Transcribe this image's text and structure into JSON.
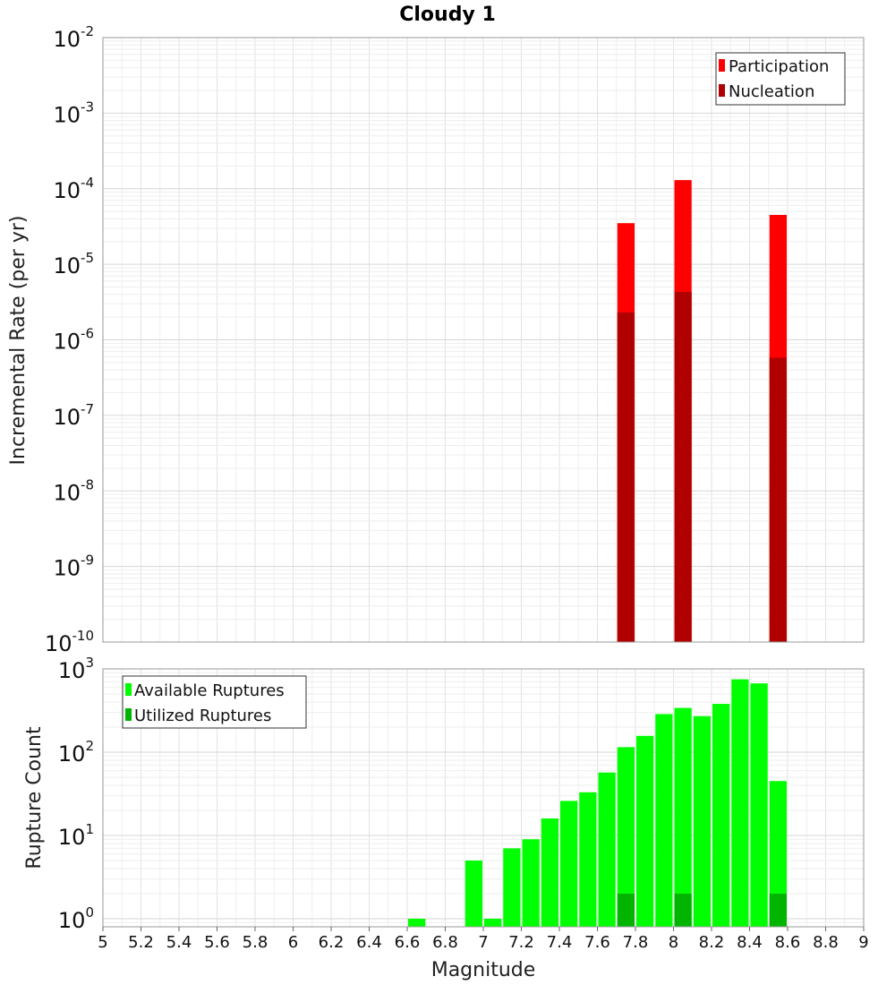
{
  "chart_data": [
    {
      "type": "bar",
      "title": "Cloudy 1",
      "xlabel": "Magnitude",
      "ylabel": "Incremental Rate (per yr)",
      "yscale": "log",
      "xlim": [
        5,
        9
      ],
      "ylim": [
        1e-10,
        0.01
      ],
      "bin_width": 0.1,
      "y_tick_exponents": [
        -10,
        -9,
        -8,
        -7,
        -6,
        -5,
        -4,
        -3,
        -2
      ],
      "legend": {
        "position": "top-right",
        "entries": [
          "Participation",
          "Nucleation"
        ]
      },
      "series": [
        {
          "name": "Participation",
          "color": "#ff0000",
          "x": [
            7.75,
            8.05,
            8.55
          ],
          "values": [
            3.5e-05,
            0.00013,
            4.5e-05
          ]
        },
        {
          "name": "Nucleation",
          "color": "#b00000",
          "x": [
            7.75,
            8.05,
            8.55
          ],
          "values": [
            2.3e-06,
            4.3e-06,
            5.8e-07
          ]
        }
      ]
    },
    {
      "type": "bar",
      "xlabel": "Magnitude",
      "ylabel": "Rupture Count",
      "yscale": "log",
      "xlim": [
        5,
        9
      ],
      "ylim": [
        0.8,
        1000
      ],
      "bin_width": 0.1,
      "x_ticks": [
        "5",
        "5.2",
        "5.4",
        "5.6",
        "5.8",
        "6",
        "6.2",
        "6.4",
        "6.6",
        "6.8",
        "7",
        "7.2",
        "7.4",
        "7.6",
        "7.8",
        "8",
        "8.2",
        "8.4",
        "8.6",
        "8.8",
        "9"
      ],
      "y_tick_exponents": [
        0,
        1,
        2,
        3
      ],
      "legend": {
        "position": "top-left",
        "entries": [
          "Available Ruptures",
          "Utilized Ruptures"
        ]
      },
      "series": [
        {
          "name": "Available Ruptures",
          "color": "#00ff00",
          "x": [
            6.65,
            6.95,
            7.05,
            7.15,
            7.25,
            7.35,
            7.45,
            7.55,
            7.65,
            7.75,
            7.85,
            7.95,
            8.05,
            8.15,
            8.25,
            8.35,
            8.45,
            8.55
          ],
          "values": [
            1,
            5,
            1,
            7,
            9,
            16,
            26,
            33,
            57,
            115,
            157,
            287,
            340,
            271,
            380,
            750,
            670,
            45
          ]
        },
        {
          "name": "Utilized Ruptures",
          "color": "#00b400",
          "x": [
            7.75,
            8.05,
            8.55
          ],
          "values": [
            2,
            2,
            2
          ]
        }
      ]
    }
  ]
}
